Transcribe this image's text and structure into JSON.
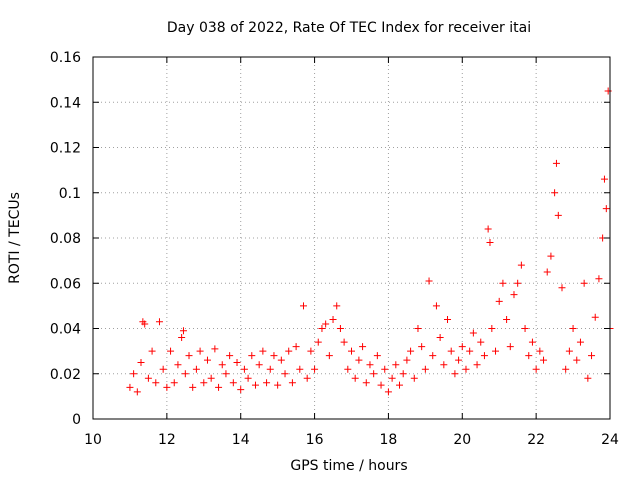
{
  "chart_data": {
    "type": "scatter",
    "title": "Day 038 of 2022, Rate Of TEC Index for receiver itai",
    "xlabel": "GPS time / hours",
    "ylabel": "ROTI / TECUs",
    "xlim": [
      10,
      24
    ],
    "ylim": [
      0,
      0.16
    ],
    "xticks": [
      10,
      12,
      14,
      16,
      18,
      20,
      22,
      24
    ],
    "xtick_labels": [
      "10",
      "12",
      "14",
      "16",
      "18",
      "20",
      "22",
      "24"
    ],
    "yticks": [
      0,
      0.02,
      0.04,
      0.06,
      0.08,
      0.1,
      0.12,
      0.14,
      0.16
    ],
    "ytick_labels": [
      "0",
      "0.02",
      "0.04",
      "0.06",
      "0.08",
      "0.1",
      "0.12",
      "0.14",
      "0.16"
    ],
    "grid": true,
    "marker": "plus",
    "color": "#ff0000",
    "series": [
      {
        "name": "ROTI",
        "x": [
          11.0,
          11.1,
          11.2,
          11.3,
          11.35,
          11.4,
          11.5,
          11.6,
          11.7,
          11.8,
          11.9,
          12.0,
          12.1,
          12.2,
          12.3,
          12.4,
          12.45,
          12.5,
          12.6,
          12.7,
          12.8,
          12.9,
          13.0,
          13.1,
          13.2,
          13.3,
          13.4,
          13.5,
          13.6,
          13.7,
          13.8,
          13.9,
          14.0,
          14.1,
          14.2,
          14.3,
          14.4,
          14.5,
          14.6,
          14.7,
          14.8,
          14.9,
          15.0,
          15.1,
          15.2,
          15.3,
          15.4,
          15.5,
          15.6,
          15.7,
          15.8,
          15.9,
          16.0,
          16.1,
          16.2,
          16.3,
          16.4,
          16.5,
          16.6,
          16.7,
          16.8,
          16.9,
          17.0,
          17.1,
          17.2,
          17.3,
          17.4,
          17.5,
          17.6,
          17.7,
          17.8,
          17.9,
          18.0,
          18.1,
          18.2,
          18.3,
          18.4,
          18.5,
          18.6,
          18.7,
          18.8,
          18.9,
          19.0,
          19.1,
          19.2,
          19.3,
          19.4,
          19.5,
          19.6,
          19.7,
          19.8,
          19.9,
          20.0,
          20.1,
          20.2,
          20.3,
          20.4,
          20.5,
          20.6,
          20.7,
          20.75,
          20.8,
          20.9,
          21.0,
          21.1,
          21.2,
          21.3,
          21.4,
          21.5,
          21.6,
          21.7,
          21.8,
          21.9,
          22.0,
          22.1,
          22.2,
          22.3,
          22.4,
          22.5,
          22.55,
          22.6,
          22.7,
          22.8,
          22.9,
          23.0,
          23.1,
          23.2,
          23.3,
          23.4,
          23.5,
          23.6,
          23.7,
          23.8,
          23.85,
          23.9,
          23.95,
          24.0
        ],
        "y": [
          0.014,
          0.02,
          0.012,
          0.025,
          0.043,
          0.042,
          0.018,
          0.03,
          0.016,
          0.043,
          0.022,
          0.014,
          0.03,
          0.016,
          0.024,
          0.036,
          0.039,
          0.02,
          0.028,
          0.014,
          0.022,
          0.03,
          0.016,
          0.026,
          0.018,
          0.031,
          0.014,
          0.024,
          0.02,
          0.028,
          0.016,
          0.025,
          0.013,
          0.022,
          0.018,
          0.028,
          0.015,
          0.024,
          0.03,
          0.016,
          0.022,
          0.028,
          0.015,
          0.026,
          0.02,
          0.03,
          0.016,
          0.032,
          0.022,
          0.05,
          0.018,
          0.03,
          0.022,
          0.034,
          0.04,
          0.042,
          0.028,
          0.044,
          0.05,
          0.04,
          0.034,
          0.022,
          0.03,
          0.018,
          0.026,
          0.032,
          0.016,
          0.024,
          0.02,
          0.028,
          0.015,
          0.022,
          0.012,
          0.018,
          0.024,
          0.015,
          0.02,
          0.026,
          0.03,
          0.018,
          0.04,
          0.032,
          0.022,
          0.061,
          0.028,
          0.05,
          0.036,
          0.024,
          0.044,
          0.03,
          0.02,
          0.026,
          0.032,
          0.022,
          0.03,
          0.038,
          0.024,
          0.034,
          0.028,
          0.084,
          0.078,
          0.04,
          0.03,
          0.052,
          0.06,
          0.044,
          0.032,
          0.055,
          0.06,
          0.068,
          0.04,
          0.028,
          0.034,
          0.022,
          0.03,
          0.026,
          0.065,
          0.072,
          0.1,
          0.113,
          0.09,
          0.058,
          0.022,
          0.03,
          0.04,
          0.026,
          0.034,
          0.06,
          0.018,
          0.028,
          0.045,
          0.062,
          0.08,
          0.106,
          0.093,
          0.145,
          0.04
        ]
      }
    ]
  }
}
